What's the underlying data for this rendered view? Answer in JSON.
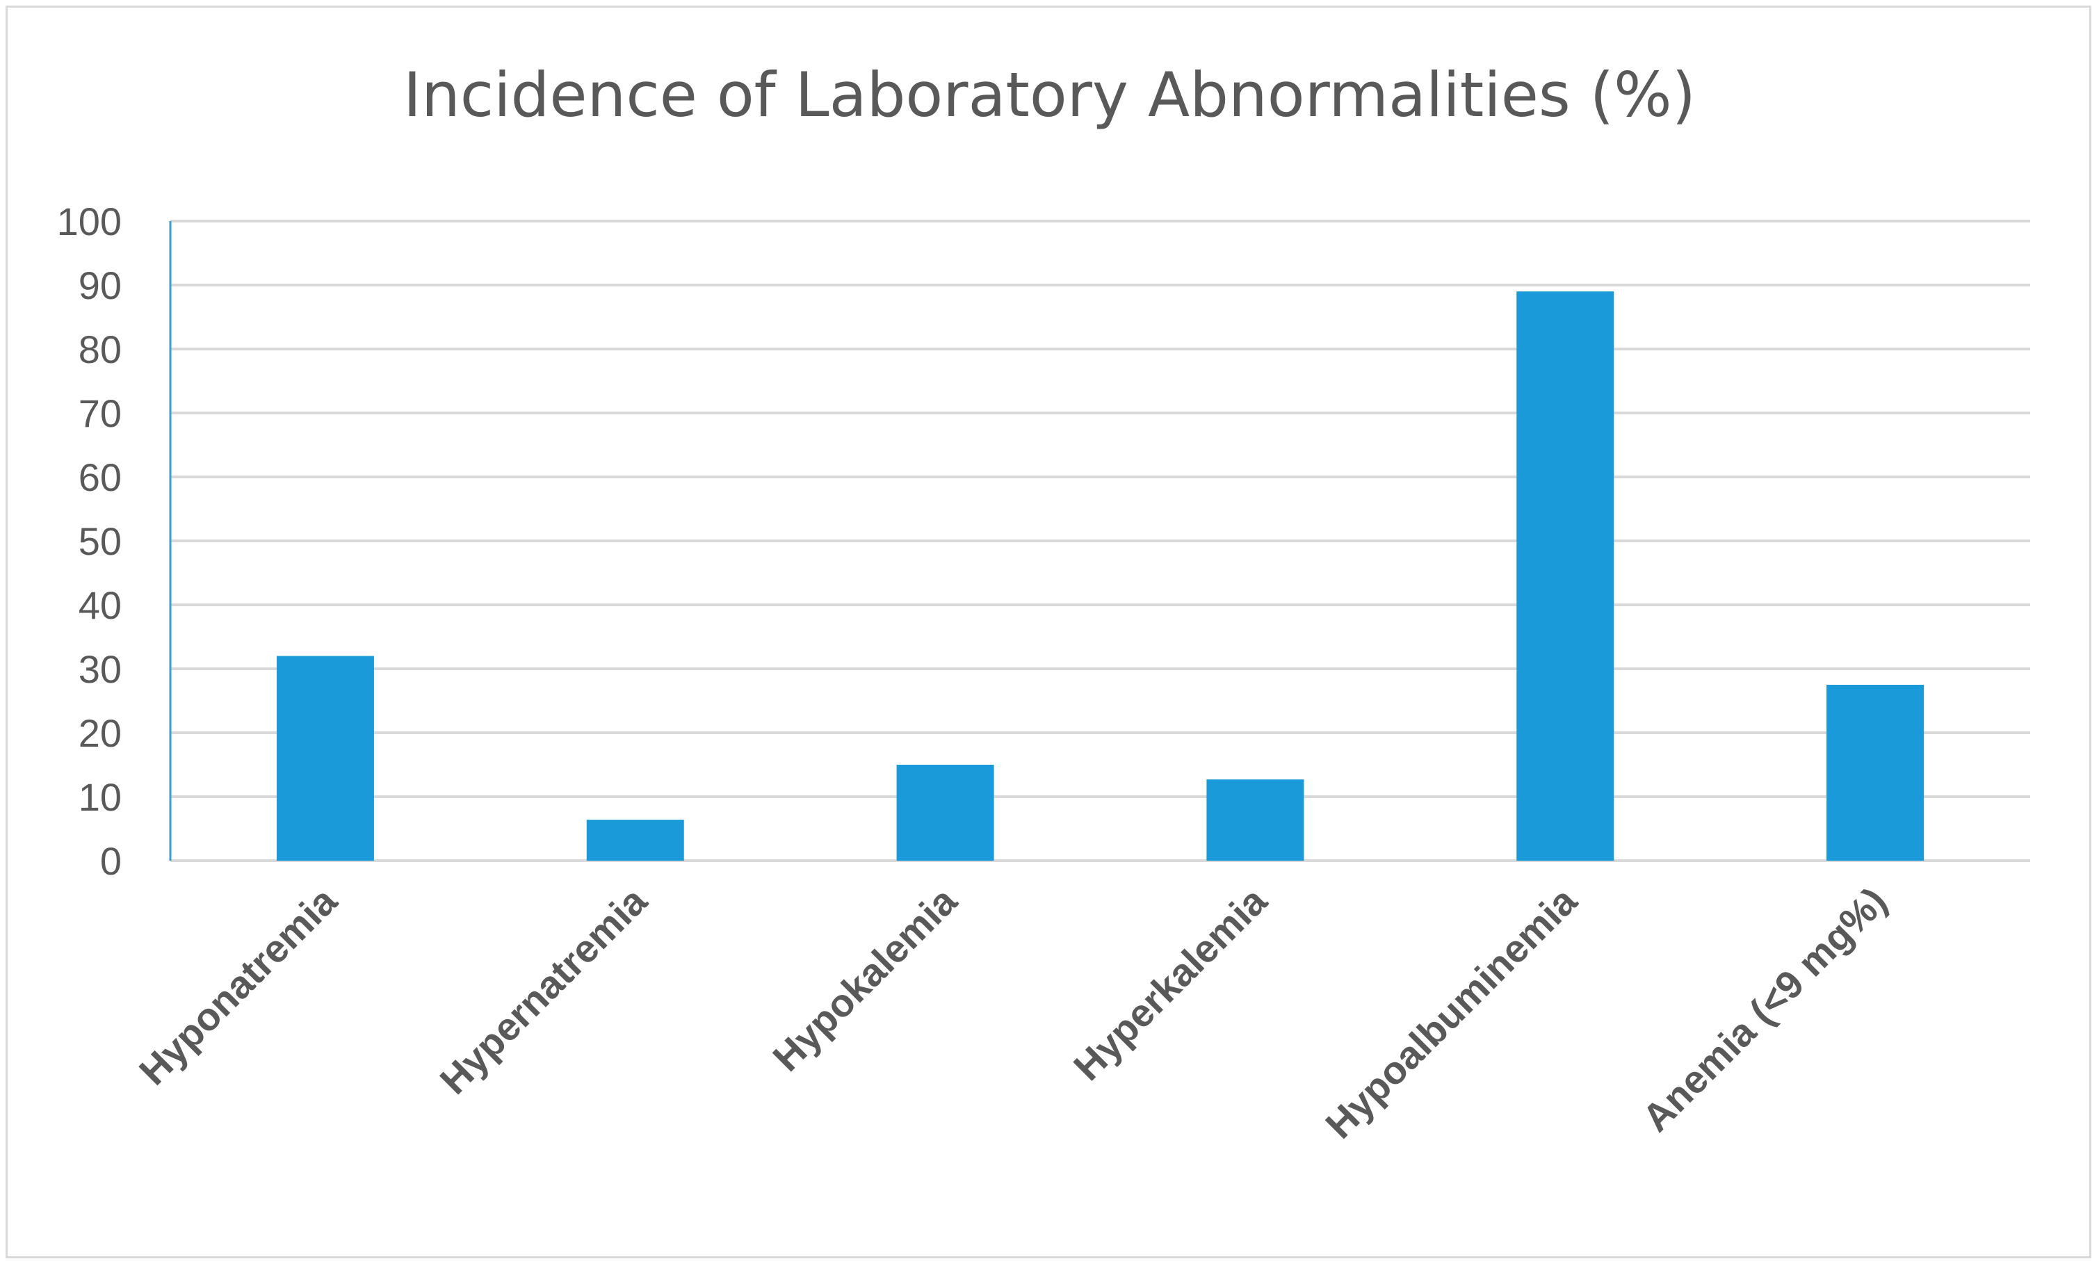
{
  "chart_data": {
    "type": "bar",
    "title": "Incidence of Laboratory Abnormalities (%)",
    "categories": [
      "Hyponatremia",
      "Hypernatremia",
      "Hypokalemia",
      "Hyperkalemia",
      "Hypoalbuminemia",
      "Anemia (<9 mg%)"
    ],
    "values": [
      32,
      6.4,
      15,
      12.7,
      89,
      27.5
    ],
    "xlabel": "",
    "ylabel": "",
    "ylim": [
      0,
      100
    ],
    "yticks": [
      "0",
      "10",
      "20",
      "30",
      "40",
      "50",
      "60",
      "70",
      "80",
      "90",
      "100"
    ],
    "grid": true,
    "legend": "none",
    "colors": {
      "bar": "#1a9ad9",
      "grid": "#d9d9d9",
      "axis": "#3a9fd0",
      "text": "#595959"
    }
  }
}
